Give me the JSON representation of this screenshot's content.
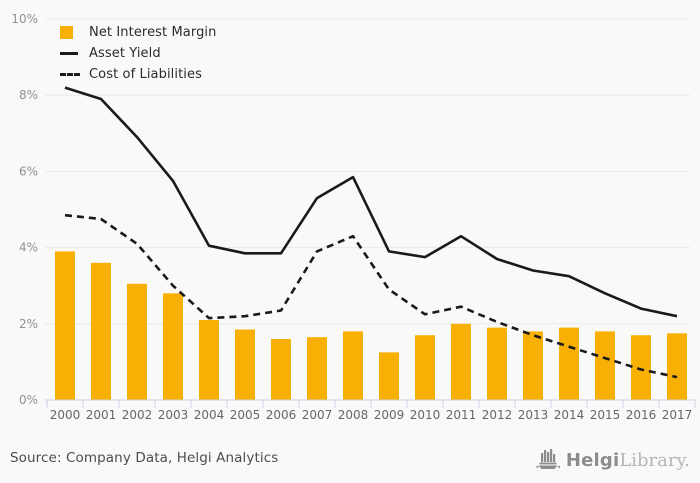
{
  "chart_data": {
    "type": "bar",
    "title": "",
    "categories": [
      "2000",
      "2001",
      "2002",
      "2003",
      "2004",
      "2005",
      "2006",
      "2007",
      "2008",
      "2009",
      "2010",
      "2011",
      "2012",
      "2013",
      "2014",
      "2015",
      "2016",
      "2017"
    ],
    "xlabel": "",
    "ylabel": "",
    "ylim": [
      0,
      10
    ],
    "grid": true,
    "legend_position": "top-left",
    "y_axis": {
      "ticks": [
        0,
        2,
        4,
        6,
        8,
        10
      ],
      "tick_labels": [
        "0%",
        "2%",
        "4%",
        "6%",
        "8%",
        "10%"
      ]
    },
    "series": [
      {
        "name": "Net Interest Margin",
        "type": "bar",
        "color": "#F9B005",
        "values": [
          3.9,
          3.6,
          3.05,
          2.8,
          2.1,
          1.85,
          1.6,
          1.65,
          1.8,
          1.25,
          1.7,
          2.0,
          1.9,
          1.8,
          1.9,
          1.8,
          1.7,
          1.75
        ]
      },
      {
        "name": "Asset Yield",
        "type": "line",
        "line_style": "solid",
        "color": "#1A1A1A",
        "values": [
          8.2,
          7.9,
          6.9,
          5.75,
          4.05,
          3.85,
          3.85,
          5.3,
          5.85,
          3.9,
          3.75,
          4.3,
          3.7,
          3.4,
          3.25,
          2.8,
          2.4,
          2.2
        ]
      },
      {
        "name": "Cost of Liabilities",
        "type": "line",
        "line_style": "dashed",
        "color": "#1A1A1A",
        "values": [
          4.85,
          4.75,
          4.1,
          3.0,
          2.15,
          2.2,
          2.35,
          3.9,
          4.3,
          2.9,
          2.25,
          2.45,
          2.05,
          1.7,
          1.4,
          1.1,
          0.8,
          0.6
        ]
      }
    ],
    "colors": {
      "background": "#f9f9f9",
      "gridline": "#e9e9e9",
      "axis": "#c9d2de",
      "y_tick_label": "#929292",
      "x_tick_label": "#666666"
    }
  },
  "footer": {
    "source_text": "Source: Company Data, Helgi Analytics",
    "logo": {
      "brand_primary": "Helgi",
      "brand_secondary": "Library."
    }
  }
}
